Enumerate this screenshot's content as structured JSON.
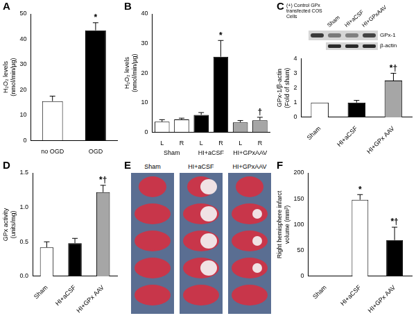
{
  "chart_data": [
    {
      "panel": "A",
      "type": "bar",
      "y_label": [
        "H₂O₂ levels",
        "(nmol/min/µg)"
      ],
      "categories": [
        "no OGD",
        "OGD"
      ],
      "values": [
        15.5,
        43.5
      ],
      "errors": [
        2,
        3
      ],
      "colors": [
        "#ffffff",
        "#000000"
      ],
      "annotations": [
        null,
        "*"
      ],
      "ylim": [
        0,
        50
      ],
      "yticks": [
        0,
        10,
        20,
        30,
        40,
        50
      ],
      "grid": false
    },
    {
      "panel": "B",
      "type": "bar",
      "y_label": [
        "H₂O₂ levels",
        "(nmol/min/µg)"
      ],
      "categories": [
        "L",
        "R",
        "L",
        "R",
        "L",
        "R"
      ],
      "groups": [
        "Sham",
        "HI+aCSF",
        "HI+GPxAAV"
      ],
      "values": [
        3.5,
        4.3,
        5.8,
        25.5,
        3.3,
        4
      ],
      "errors": [
        0.7,
        0.4,
        0.8,
        5.5,
        0.6,
        1
      ],
      "colors": [
        "#ffffff",
        "#ffffff",
        "#000000",
        "#000000",
        "#a6a6a6",
        "#a6a6a6"
      ],
      "annotations": [
        null,
        null,
        null,
        "*",
        null,
        "†"
      ],
      "ylim": [
        0,
        40
      ],
      "yticks": [
        0,
        10,
        20,
        30,
        40
      ],
      "grid": false
    },
    {
      "panel": "C",
      "type": "bar",
      "blot": {
        "header": "(+) Control GPx transfected COS Cells",
        "lanes": [
          "Sham",
          "HI+aCSF",
          "HI+GPxAAV"
        ],
        "bands": [
          "GPx-1",
          "β-actin"
        ]
      },
      "y_label": [
        "GPx-1/β-actin",
        "(Fold of sham)"
      ],
      "categories": [
        "Sham",
        "HI+aCSF",
        "HI+GPx AAV"
      ],
      "values": [
        1,
        1,
        2.5
      ],
      "errors": [
        0,
        0.15,
        0.5
      ],
      "colors": [
        "#ffffff",
        "#000000",
        "#a6a6a6"
      ],
      "annotations": [
        null,
        null,
        "*†"
      ],
      "ylim": [
        0,
        4
      ],
      "yticks": [
        0,
        1,
        2,
        3,
        4
      ],
      "grid": false
    },
    {
      "panel": "D",
      "type": "bar",
      "y_label": [
        "GPx activity",
        "(units/mg)"
      ],
      "categories": [
        "Sham",
        "HI+aCSF",
        "HI+GPx AAV"
      ],
      "values": [
        0.42,
        0.48,
        1.22
      ],
      "errors": [
        0.08,
        0.07,
        0.1
      ],
      "colors": [
        "#ffffff",
        "#000000",
        "#a6a6a6"
      ],
      "annotations": [
        null,
        null,
        "*†"
      ],
      "ylim": [
        0,
        1.5
      ],
      "yticks": [
        {
          "value": 0,
          "label": "0.0"
        },
        0.5,
        {
          "value": 1,
          "label": "1.0"
        },
        1.5
      ],
      "grid": false
    },
    {
      "panel": "E",
      "type": "image",
      "labels": [
        "Sham",
        "HI+aCSF",
        "HI+GPxAAV"
      ]
    },
    {
      "panel": "F",
      "type": "bar",
      "y_label": [
        "Right hemisphere infarct",
        "volume (mm³)"
      ],
      "categories": [
        "Sham",
        "HI+aCSF",
        "HI+GPx AAV"
      ],
      "values": [
        0,
        148,
        70
      ],
      "errors": [
        0,
        10,
        25
      ],
      "colors": [
        "#ffffff",
        "#ffffff",
        "#000000"
      ],
      "annotations": [
        null,
        "*",
        "*†"
      ],
      "ylim": [
        0,
        200
      ],
      "yticks": [
        0,
        50,
        100,
        150,
        200
      ],
      "grid": false
    }
  ]
}
